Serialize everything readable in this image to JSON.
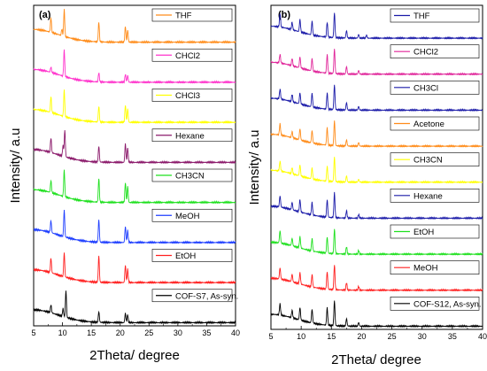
{
  "chart_data": [
    {
      "panel_label": "(a)",
      "type": "line",
      "xlabel": "2Theta/ degree",
      "ylabel": "Intensity/ a.u",
      "xlim": [
        5,
        40
      ],
      "xticks": [
        5,
        10,
        15,
        20,
        25,
        30,
        35,
        40
      ],
      "yticks_shown": false,
      "layout": "stacked offset traces, legend box at top-right of each trace",
      "series": [
        {
          "name": "THF",
          "color": "#ff8c1a",
          "peaks": [
            [
              8.0,
              0.55
            ],
            [
              9.9,
              0.25
            ],
            [
              10.3,
              1.0
            ],
            [
              16.3,
              0.75
            ],
            [
              20.9,
              0.6
            ],
            [
              21.3,
              0.45
            ]
          ]
        },
        {
          "name": "CHCl2",
          "color": "#ff33cc",
          "peaks": [
            [
              8.0,
              0.2
            ],
            [
              10.3,
              1.0
            ],
            [
              16.3,
              0.35
            ],
            [
              20.9,
              0.3
            ],
            [
              21.3,
              0.25
            ]
          ]
        },
        {
          "name": "CHCl3",
          "color": "#ffff00",
          "peaks": [
            [
              8.0,
              0.6
            ],
            [
              10.3,
              1.0
            ],
            [
              16.3,
              0.6
            ],
            [
              20.9,
              0.65
            ],
            [
              21.3,
              0.5
            ]
          ]
        },
        {
          "name": "Hexane",
          "color": "#8b1a6b",
          "peaks": [
            [
              8.0,
              0.55
            ],
            [
              10.1,
              0.4
            ],
            [
              10.4,
              1.0
            ],
            [
              16.3,
              0.6
            ],
            [
              20.9,
              0.7
            ],
            [
              21.3,
              0.55
            ]
          ]
        },
        {
          "name": "CH3CN",
          "color": "#1fe01f",
          "peaks": [
            [
              8.0,
              0.45
            ],
            [
              10.3,
              1.0
            ],
            [
              16.3,
              0.9
            ],
            [
              20.9,
              0.75
            ],
            [
              21.3,
              0.6
            ]
          ]
        },
        {
          "name": "MeOH",
          "color": "#1f3fff",
          "peaks": [
            [
              8.0,
              0.45
            ],
            [
              10.3,
              1.0
            ],
            [
              16.3,
              0.85
            ],
            [
              20.9,
              0.6
            ],
            [
              21.3,
              0.45
            ]
          ]
        },
        {
          "name": "EtOH",
          "color": "#ff2020",
          "peaks": [
            [
              8.0,
              0.55
            ],
            [
              10.3,
              0.9
            ],
            [
              16.3,
              1.0
            ],
            [
              20.9,
              0.65
            ],
            [
              21.3,
              0.5
            ]
          ]
        },
        {
          "name": "COF-S7, As-syn.",
          "color": "#000000",
          "peaks": [
            [
              8.0,
              0.3
            ],
            [
              10.1,
              0.3
            ],
            [
              10.6,
              1.0
            ],
            [
              16.3,
              0.4
            ],
            [
              20.9,
              0.35
            ],
            [
              21.3,
              0.3
            ]
          ]
        }
      ]
    },
    {
      "panel_label": "(b)",
      "type": "line",
      "xlabel": "2Theta/ degree",
      "ylabel": "Intensity/ a.u",
      "xlim": [
        5,
        40
      ],
      "xticks": [
        5,
        10,
        15,
        20,
        25,
        30,
        35,
        40
      ],
      "yticks_shown": false,
      "layout": "stacked offset traces, legend box at top-right of each trace",
      "series": [
        {
          "name": "THF",
          "color": "#1a1aa8",
          "peaks": [
            [
              6.5,
              0.55
            ],
            [
              8.5,
              0.3
            ],
            [
              9.8,
              0.5
            ],
            [
              11.8,
              0.55
            ],
            [
              14.3,
              0.6
            ],
            [
              15.5,
              1.0
            ],
            [
              17.5,
              0.3
            ],
            [
              19.5,
              0.15
            ],
            [
              20.8,
              0.12
            ]
          ]
        },
        {
          "name": "CHCl2",
          "color": "#e0259a",
          "peaks": [
            [
              6.5,
              0.35
            ],
            [
              8.5,
              0.3
            ],
            [
              9.8,
              0.45
            ],
            [
              11.8,
              0.5
            ],
            [
              14.3,
              0.75
            ],
            [
              15.5,
              1.0
            ],
            [
              17.5,
              0.3
            ],
            [
              19.5,
              0.15
            ]
          ]
        },
        {
          "name": "CH3Cl",
          "color": "#1a1aa8",
          "peaks": [
            [
              6.5,
              0.4
            ],
            [
              8.5,
              0.3
            ],
            [
              9.8,
              0.45
            ],
            [
              11.8,
              0.55
            ],
            [
              14.3,
              0.65
            ],
            [
              15.5,
              1.0
            ],
            [
              17.5,
              0.3
            ],
            [
              19.5,
              0.15
            ]
          ]
        },
        {
          "name": "Acetone",
          "color": "#ff8c1a",
          "peaks": [
            [
              6.5,
              0.45
            ],
            [
              8.5,
              0.25
            ],
            [
              9.8,
              0.45
            ],
            [
              11.8,
              0.5
            ],
            [
              14.3,
              0.7
            ],
            [
              15.5,
              1.0
            ],
            [
              17.5,
              0.25
            ],
            [
              19.5,
              0.15
            ]
          ]
        },
        {
          "name": "CH3CN",
          "color": "#ffff00",
          "peaks": [
            [
              6.5,
              0.4
            ],
            [
              8.5,
              0.25
            ],
            [
              9.8,
              0.45
            ],
            [
              11.8,
              0.45
            ],
            [
              14.3,
              0.6
            ],
            [
              15.5,
              1.0
            ],
            [
              17.5,
              0.25
            ],
            [
              19.5,
              0.12
            ]
          ]
        },
        {
          "name": "Hexane",
          "color": "#1a1aa8",
          "peaks": [
            [
              6.5,
              0.45
            ],
            [
              8.5,
              0.3
            ],
            [
              9.8,
              0.5
            ],
            [
              11.8,
              0.5
            ],
            [
              14.3,
              0.7
            ],
            [
              15.5,
              1.0
            ],
            [
              17.5,
              0.3
            ],
            [
              19.5,
              0.15
            ]
          ]
        },
        {
          "name": "EtOH",
          "color": "#1fe01f",
          "peaks": [
            [
              6.5,
              0.5
            ],
            [
              8.5,
              0.3
            ],
            [
              9.8,
              0.45
            ],
            [
              11.8,
              0.5
            ],
            [
              14.3,
              0.65
            ],
            [
              15.5,
              1.0
            ],
            [
              17.5,
              0.3
            ],
            [
              19.5,
              0.15
            ]
          ]
        },
        {
          "name": "MeOH",
          "color": "#ff2020",
          "peaks": [
            [
              6.5,
              0.45
            ],
            [
              8.5,
              0.3
            ],
            [
              9.8,
              0.45
            ],
            [
              11.8,
              0.5
            ],
            [
              14.3,
              0.7
            ],
            [
              15.5,
              1.0
            ],
            [
              17.5,
              0.3
            ],
            [
              19.5,
              0.15
            ]
          ]
        },
        {
          "name": "COF-S12, As-syn.",
          "color": "#000000",
          "peaks": [
            [
              6.5,
              0.45
            ],
            [
              8.5,
              0.3
            ],
            [
              9.8,
              0.5
            ],
            [
              11.8,
              0.55
            ],
            [
              14.3,
              0.7
            ],
            [
              15.5,
              1.0
            ],
            [
              17.5,
              0.3
            ],
            [
              19.5,
              0.15
            ]
          ]
        }
      ]
    }
  ]
}
